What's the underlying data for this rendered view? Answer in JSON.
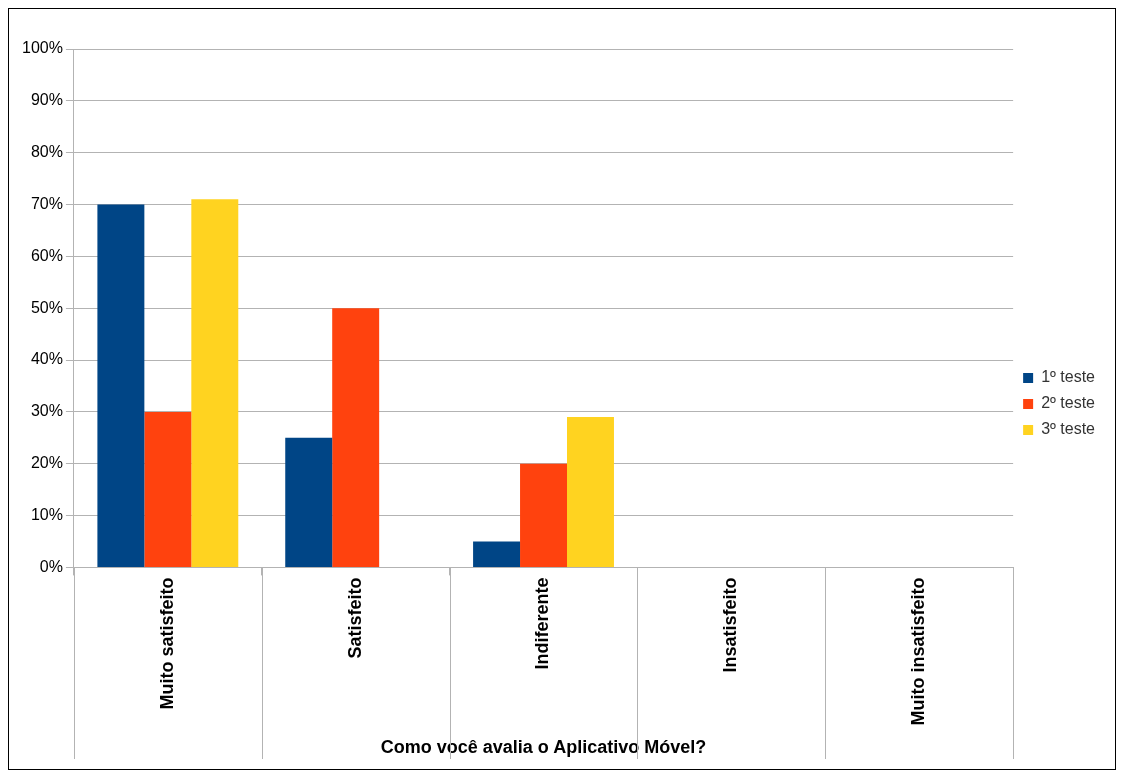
{
  "chart_data": {
    "type": "bar",
    "xlabel": "Como você avalia o Aplicativo Móvel?",
    "categories": [
      "Muito satisfeito",
      "Satisfeito",
      "Indiferente",
      "Insatisfeito",
      "Muito insatisfeito"
    ],
    "series": [
      {
        "name": "1º teste",
        "color": "#004586",
        "values": [
          70,
          25,
          5,
          0,
          0
        ]
      },
      {
        "name": "2º teste",
        "color": "#ff420e",
        "values": [
          30,
          50,
          20,
          0,
          0
        ]
      },
      {
        "name": "3º teste",
        "color": "#ffd320",
        "values": [
          71,
          0,
          29,
          0,
          0
        ]
      }
    ],
    "ylim": [
      0,
      100
    ],
    "yticks": [
      {
        "value": 0,
        "label": "0%"
      },
      {
        "value": 10,
        "label": "10%"
      },
      {
        "value": 20,
        "label": "20%"
      },
      {
        "value": 30,
        "label": "30%"
      },
      {
        "value": 40,
        "label": "40%"
      },
      {
        "value": 50,
        "label": "50%"
      },
      {
        "value": 60,
        "label": "60%"
      },
      {
        "value": 70,
        "label": "70%"
      },
      {
        "value": 80,
        "label": "80%"
      },
      {
        "value": 90,
        "label": "90%"
      },
      {
        "value": 100,
        "label": "100%"
      }
    ],
    "grid": "y",
    "legend": "right"
  }
}
